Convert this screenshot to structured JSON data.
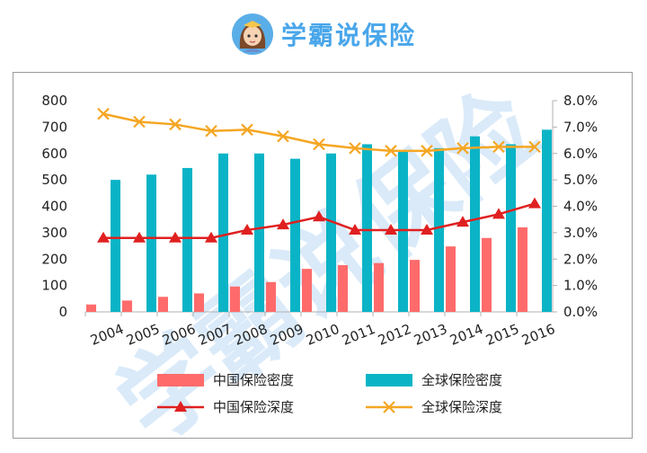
{
  "brand": {
    "name": "学霸说保险",
    "avatar_icon": "girl-avatar-icon",
    "color": "#49a6ea"
  },
  "watermark": "学霸说保险",
  "chart_data": {
    "type": "bar",
    "title": "",
    "categories": [
      "2004",
      "2005",
      "2006",
      "2007",
      "2008",
      "2009",
      "2010",
      "2011",
      "2012",
      "2013",
      "2014",
      "2015",
      "2016"
    ],
    "series": [
      {
        "name": "中国保险密度",
        "kind": "bar",
        "axis": "left",
        "color": "#ff6b6b",
        "values": [
          28,
          43,
          57,
          70,
          96,
          113,
          163,
          177,
          185,
          197,
          248,
          280,
          320
        ]
      },
      {
        "name": "全球保险密度",
        "kind": "bar",
        "axis": "left",
        "color": "#0ab4c6",
        "values": [
          500,
          520,
          545,
          600,
          600,
          580,
          600,
          635,
          610,
          620,
          665,
          635,
          690
        ]
      },
      {
        "name": "中国保险深度",
        "kind": "line",
        "axis": "right",
        "marker": "triangle",
        "color": "#e02020",
        "values": [
          2.8,
          2.8,
          2.8,
          2.8,
          3.1,
          3.3,
          3.6,
          3.1,
          3.1,
          3.1,
          3.4,
          3.7,
          4.1
        ]
      },
      {
        "name": "全球保险深度",
        "kind": "line",
        "axis": "right",
        "marker": "x",
        "color": "#f5a623",
        "values": [
          7.5,
          7.2,
          7.1,
          6.85,
          6.9,
          6.65,
          6.35,
          6.2,
          6.1,
          6.1,
          6.2,
          6.25,
          6.25
        ]
      }
    ],
    "y_left": {
      "min": 0,
      "max": 800,
      "ticks": [
        0,
        100,
        200,
        300,
        400,
        500,
        600,
        700,
        800
      ]
    },
    "y_right": {
      "min": 0,
      "max": 8,
      "ticks": [
        "0.0%",
        "1.0%",
        "2.0%",
        "3.0%",
        "4.0%",
        "5.0%",
        "6.0%",
        "7.0%",
        "8.0%"
      ]
    },
    "grid": false,
    "legend": "bottom"
  }
}
